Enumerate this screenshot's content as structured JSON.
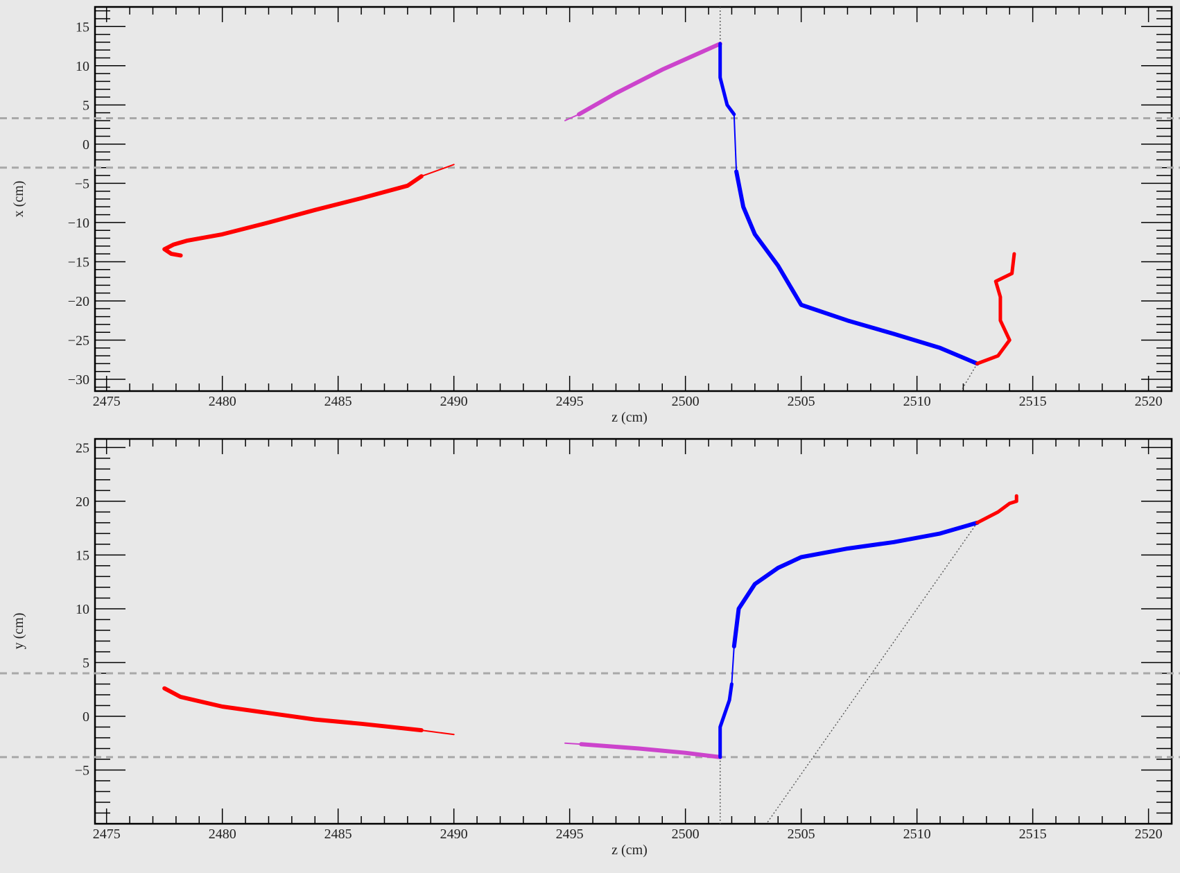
{
  "chart_data": [
    {
      "type": "line",
      "xlabel": "z (cm)",
      "ylabel": "x (cm)",
      "xlim": [
        2474.5,
        2521
      ],
      "ylim": [
        -31.5,
        17.5
      ],
      "x_ticks": [
        2475,
        2480,
        2485,
        2490,
        2495,
        2500,
        2505,
        2510,
        2515,
        2520
      ],
      "x_tick_labels": [
        "2475",
        "2480",
        "2485",
        "2490",
        "2495",
        "2500",
        "2505",
        "2510",
        "2515",
        "2520"
      ],
      "y_ticks": [
        15,
        10,
        5,
        0,
        -5,
        -10,
        -15,
        -20,
        -25,
        -30
      ],
      "y_tick_labels": [
        "15",
        "10",
        "5",
        "0",
        "−5",
        "−10",
        "−15",
        "−20",
        "−25",
        "−30"
      ],
      "guide_lines_y": [
        3.3,
        -3.0
      ],
      "series": [
        {
          "color": "#ff0000",
          "width": 6,
          "points": [
            [
              2478.2,
              -14.2
            ],
            [
              2477.8,
              -14.0
            ],
            [
              2477.5,
              -13.4
            ],
            [
              2477.9,
              -12.8
            ],
            [
              2478.5,
              -12.3
            ],
            [
              2480,
              -11.5
            ],
            [
              2482,
              -10.0
            ],
            [
              2484,
              -8.4
            ],
            [
              2486,
              -6.9
            ],
            [
              2488,
              -5.3
            ],
            [
              2488.6,
              -4.1
            ]
          ]
        },
        {
          "color": "#ff0000",
          "width": 2,
          "points": [
            [
              2488.6,
              -4.1
            ],
            [
              2490.0,
              -2.6
            ]
          ]
        },
        {
          "color": "#cc44cc",
          "width": 2,
          "points": [
            [
              2494.8,
              3.0
            ],
            [
              2495.4,
              3.8
            ]
          ]
        },
        {
          "color": "#cc44cc",
          "width": 6,
          "points": [
            [
              2495.4,
              3.8
            ],
            [
              2497,
              6.5
            ],
            [
              2499,
              9.5
            ],
            [
              2501.5,
              12.8
            ]
          ]
        },
        {
          "color": "#0000ff",
          "width": 5,
          "points": [
            [
              2501.5,
              12.8
            ],
            [
              2501.5,
              8.5
            ],
            [
              2501.8,
              5.0
            ],
            [
              2502.1,
              3.8
            ]
          ]
        },
        {
          "color": "#0000ff",
          "width": 2,
          "points": [
            [
              2502.1,
              3.8
            ],
            [
              2502.2,
              -3.5
            ]
          ]
        },
        {
          "color": "#0000ff",
          "width": 6,
          "points": [
            [
              2502.2,
              -3.5
            ],
            [
              2502.5,
              -8.0
            ],
            [
              2503,
              -11.5
            ],
            [
              2504,
              -15.5
            ],
            [
              2505,
              -20.5
            ],
            [
              2507,
              -22.5
            ],
            [
              2509,
              -24.2
            ],
            [
              2511,
              -26.0
            ],
            [
              2512.6,
              -28.0
            ]
          ]
        },
        {
          "color": "#ff0000",
          "width": 5,
          "points": [
            [
              2512.6,
              -28.0
            ],
            [
              2513.5,
              -27.0
            ],
            [
              2514.0,
              -25.0
            ],
            [
              2513.6,
              -22.5
            ],
            [
              2513.6,
              -19.5
            ],
            [
              2513.4,
              -17.5
            ],
            [
              2514.1,
              -16.5
            ],
            [
              2514.2,
              -14.0
            ]
          ]
        }
      ],
      "dotted_lines": [
        [
          [
            2501.5,
            17.5
          ],
          [
            2501.5,
            12.8
          ]
        ],
        [
          [
            2512.6,
            -28.0
          ],
          [
            2511.9,
            -31.5
          ]
        ]
      ]
    },
    {
      "type": "line",
      "xlabel": "z (cm)",
      "ylabel": "y (cm)",
      "xlim": [
        2474.5,
        2521
      ],
      "ylim": [
        -10,
        25.8
      ],
      "x_ticks": [
        2475,
        2480,
        2485,
        2490,
        2495,
        2500,
        2505,
        2510,
        2515,
        2520
      ],
      "x_tick_labels": [
        "2475",
        "2480",
        "2485",
        "2490",
        "2495",
        "2500",
        "2505",
        "2510",
        "2515",
        "2520"
      ],
      "y_ticks": [
        25,
        20,
        15,
        10,
        5,
        0,
        -5
      ],
      "y_tick_labels": [
        "25",
        "20",
        "15",
        "10",
        "5",
        "0",
        "−5"
      ],
      "guide_lines_y": [
        4.0,
        -3.8
      ],
      "series": [
        {
          "color": "#ff0000",
          "width": 6,
          "points": [
            [
              2477.5,
              2.6
            ],
            [
              2478.2,
              1.8
            ],
            [
              2480,
              0.9
            ],
            [
              2482,
              0.3
            ],
            [
              2484,
              -0.3
            ],
            [
              2486,
              -0.7
            ],
            [
              2488.6,
              -1.3
            ]
          ]
        },
        {
          "color": "#ff0000",
          "width": 2,
          "points": [
            [
              2488.6,
              -1.3
            ],
            [
              2490.0,
              -1.7
            ]
          ]
        },
        {
          "color": "#cc44cc",
          "width": 2,
          "points": [
            [
              2494.8,
              -2.5
            ],
            [
              2495.5,
              -2.6
            ]
          ]
        },
        {
          "color": "#cc44cc",
          "width": 6,
          "points": [
            [
              2495.5,
              -2.6
            ],
            [
              2498,
              -3.0
            ],
            [
              2500,
              -3.4
            ],
            [
              2501.5,
              -3.8
            ]
          ]
        },
        {
          "color": "#0000ff",
          "width": 5,
          "points": [
            [
              2501.5,
              -3.8
            ],
            [
              2501.5,
              -1.0
            ],
            [
              2501.9,
              1.5
            ],
            [
              2502.0,
              3.0
            ]
          ]
        },
        {
          "color": "#0000ff",
          "width": 2,
          "points": [
            [
              2502.0,
              3.0
            ],
            [
              2502.1,
              6.5
            ]
          ]
        },
        {
          "color": "#0000ff",
          "width": 6,
          "points": [
            [
              2502.1,
              6.5
            ],
            [
              2502.3,
              10.0
            ],
            [
              2503,
              12.3
            ],
            [
              2504,
              13.8
            ],
            [
              2505,
              14.8
            ],
            [
              2507,
              15.6
            ],
            [
              2509,
              16.2
            ],
            [
              2511,
              17.0
            ],
            [
              2512.6,
              18.0
            ]
          ]
        },
        {
          "color": "#ff0000",
          "width": 5,
          "points": [
            [
              2512.6,
              18.0
            ],
            [
              2513.5,
              19.0
            ],
            [
              2514.0,
              19.8
            ],
            [
              2514.3,
              20.0
            ],
            [
              2514.3,
              20.5
            ]
          ]
        }
      ],
      "dotted_lines": [
        [
          [
            2501.5,
            -3.8
          ],
          [
            2501.5,
            -10
          ]
        ],
        [
          [
            2512.6,
            18.0
          ],
          [
            2503.5,
            -10
          ]
        ]
      ]
    }
  ]
}
